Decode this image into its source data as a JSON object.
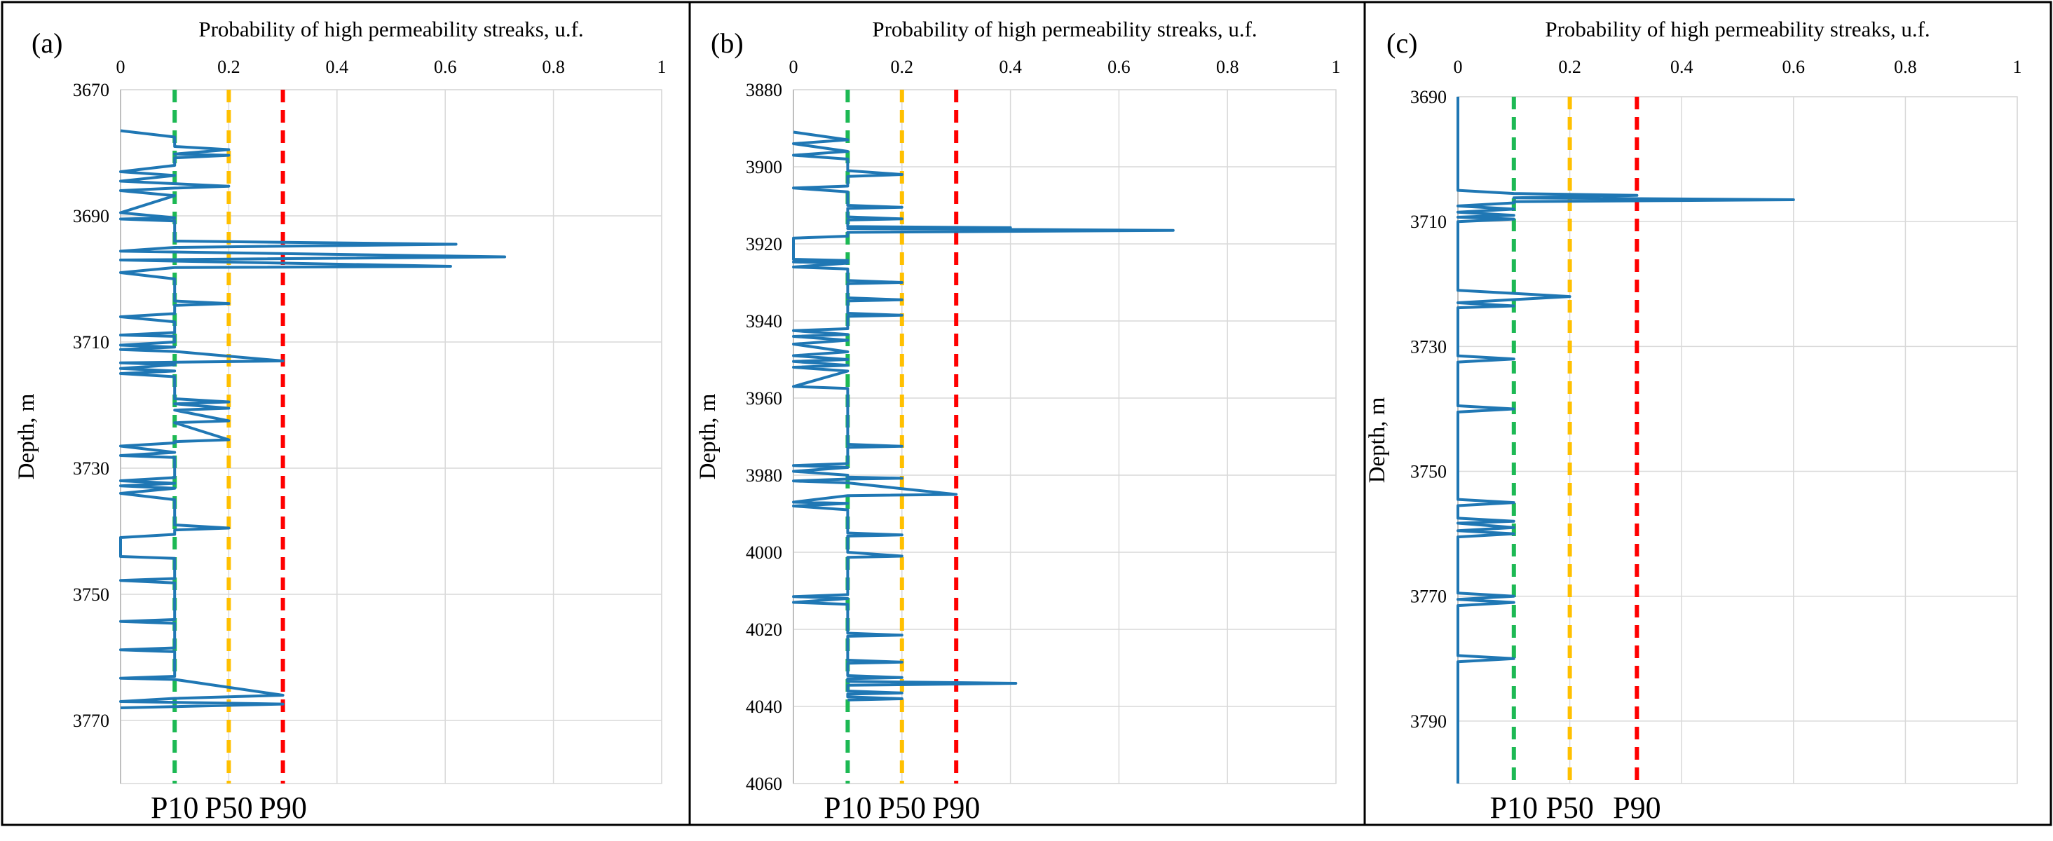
{
  "colors": {
    "series": "#1f77b4",
    "p10": "#1db954",
    "p50": "#ffc000",
    "p90": "#ff0000",
    "grid": "#d9d9d9",
    "frame": "#000000"
  },
  "chart_data": [
    {
      "type": "line",
      "panel": "(a)",
      "title": "Probability of high permeability streaks, u.f.",
      "xlabel": "Probability of high permeability streaks, u.f.",
      "ylabel": "Depth, m",
      "x_ticks": [
        "0",
        "0.2",
        "0.4",
        "0.6",
        "0.8",
        "1"
      ],
      "y_ticks": [
        "3670",
        "3690",
        "3710",
        "3730",
        "3750",
        "3770"
      ],
      "xlim": [
        0,
        1
      ],
      "ylim": [
        3670,
        3780
      ],
      "percentiles": [
        {
          "name": "P10",
          "value": 0.1
        },
        {
          "name": "P50",
          "value": 0.2
        },
        {
          "name": "P90",
          "value": 0.3
        }
      ],
      "series": [
        {
          "name": "probability",
          "points": [
            [
              0,
              3676.5
            ],
            [
              0.1,
              3677.5
            ],
            [
              0.1,
              3679
            ],
            [
              0.2,
              3679.5
            ],
            [
              0.1,
              3680.2
            ],
            [
              0.2,
              3680.4
            ],
            [
              0.1,
              3680.8
            ],
            [
              0.1,
              3682
            ],
            [
              0,
              3683
            ],
            [
              0.1,
              3683.6
            ],
            [
              0,
              3684.5
            ],
            [
              0.2,
              3685.3
            ],
            [
              0.1,
              3685.6
            ],
            [
              0,
              3686
            ],
            [
              0.1,
              3686.8
            ],
            [
              0,
              3689.5
            ],
            [
              0.1,
              3690.3
            ],
            [
              0,
              3690.5
            ],
            [
              0.1,
              3690.8
            ],
            [
              0.1,
              3694
            ],
            [
              0.62,
              3694.5
            ],
            [
              0.1,
              3695
            ],
            [
              0,
              3695.6
            ],
            [
              0.71,
              3696.5
            ],
            [
              0,
              3697
            ],
            [
              0.61,
              3698
            ],
            [
              0.1,
              3698.2
            ],
            [
              0,
              3699
            ],
            [
              0.1,
              3700
            ],
            [
              0.1,
              3703.5
            ],
            [
              0.2,
              3703.9
            ],
            [
              0.1,
              3704.2
            ],
            [
              0.1,
              3705.5
            ],
            [
              0,
              3706
            ],
            [
              0.1,
              3706.8
            ],
            [
              0.1,
              3708.5
            ],
            [
              0,
              3708.9
            ],
            [
              0.1,
              3709.1
            ],
            [
              0.1,
              3710
            ],
            [
              0,
              3710.5
            ],
            [
              0.1,
              3710.8
            ],
            [
              0,
              3711.2
            ],
            [
              0.1,
              3711.5
            ],
            [
              0.3,
              3713
            ],
            [
              0,
              3713.3
            ],
            [
              0.1,
              3713.6
            ],
            [
              0,
              3714.2
            ],
            [
              0.1,
              3714.6
            ],
            [
              0,
              3715
            ],
            [
              0.1,
              3715.5
            ],
            [
              0.1,
              3719
            ],
            [
              0.2,
              3719.5
            ],
            [
              0.1,
              3719.8
            ],
            [
              0.2,
              3720.5
            ],
            [
              0.1,
              3720.8
            ],
            [
              0.2,
              3722.5
            ],
            [
              0.1,
              3722.8
            ],
            [
              0.2,
              3725.5
            ],
            [
              0.1,
              3725.8
            ],
            [
              0.1,
              3726
            ],
            [
              0,
              3726.5
            ],
            [
              0.1,
              3727.5
            ],
            [
              0,
              3728
            ],
            [
              0.1,
              3728.3
            ],
            [
              0.1,
              3731.5
            ],
            [
              0,
              3732
            ],
            [
              0.1,
              3732.4
            ],
            [
              0,
              3732.8
            ],
            [
              0.1,
              3733.2
            ],
            [
              0,
              3734
            ],
            [
              0.1,
              3735
            ],
            [
              0.1,
              3739
            ],
            [
              0.2,
              3739.5
            ],
            [
              0.1,
              3739.8
            ],
            [
              0.1,
              3740.5
            ],
            [
              0,
              3741
            ],
            [
              0,
              3744
            ],
            [
              0.1,
              3744.3
            ],
            [
              0.1,
              3747.5
            ],
            [
              0,
              3747.8
            ],
            [
              0.1,
              3748.2
            ],
            [
              0.1,
              3754
            ],
            [
              0,
              3754.3
            ],
            [
              0.1,
              3754.6
            ],
            [
              0.1,
              3758.5
            ],
            [
              0,
              3758.8
            ],
            [
              0.1,
              3759.1
            ],
            [
              0.1,
              3763
            ],
            [
              0,
              3763.3
            ],
            [
              0.1,
              3763.5
            ],
            [
              0.3,
              3766
            ],
            [
              0.1,
              3766.5
            ],
            [
              0,
              3767
            ],
            [
              0.3,
              3767.4
            ],
            [
              0.1,
              3767.8
            ],
            [
              0,
              3768
            ]
          ]
        }
      ]
    },
    {
      "type": "line",
      "panel": "(b)",
      "title": "Probability of high permeability streaks, u.f.",
      "xlabel": "Probability of high permeability streaks, u.f.",
      "ylabel": "Depth, m",
      "x_ticks": [
        "0",
        "0.2",
        "0.4",
        "0.6",
        "0.8",
        "1"
      ],
      "y_ticks": [
        "3880",
        "3900",
        "3920",
        "3940",
        "3960",
        "3980",
        "4000",
        "4020",
        "4040",
        "4060"
      ],
      "xlim": [
        0,
        1
      ],
      "ylim": [
        3880,
        4060
      ],
      "percentiles": [
        {
          "name": "P10",
          "value": 0.1
        },
        {
          "name": "P50",
          "value": 0.2
        },
        {
          "name": "P90",
          "value": 0.3
        }
      ],
      "series": [
        {
          "name": "probability",
          "points": [
            [
              0,
              3891
            ],
            [
              0.1,
              3893
            ],
            [
              0,
              3894
            ],
            [
              0.1,
              3896
            ],
            [
              0,
              3897
            ],
            [
              0.1,
              3898
            ],
            [
              0.1,
              3901
            ],
            [
              0.2,
              3902
            ],
            [
              0.1,
              3902.5
            ],
            [
              0.1,
              3905
            ],
            [
              0,
              3905.5
            ],
            [
              0.1,
              3906.5
            ],
            [
              0.1,
              3910
            ],
            [
              0.2,
              3910.5
            ],
            [
              0.1,
              3910.8
            ],
            [
              0.1,
              3913
            ],
            [
              0.2,
              3913.5
            ],
            [
              0.1,
              3913.8
            ],
            [
              0.1,
              3915.5
            ],
            [
              0.4,
              3915.8
            ],
            [
              0.1,
              3916
            ],
            [
              0.7,
              3916.5
            ],
            [
              0.1,
              3917
            ],
            [
              0.1,
              3918
            ],
            [
              0,
              3918.5
            ],
            [
              0,
              3924
            ],
            [
              0.1,
              3924.3
            ],
            [
              0,
              3924.7
            ],
            [
              0.1,
              3925
            ],
            [
              0,
              3926
            ],
            [
              0.1,
              3926.5
            ],
            [
              0.1,
              3929.5
            ],
            [
              0.2,
              3930
            ],
            [
              0.1,
              3930.3
            ],
            [
              0.1,
              3934
            ],
            [
              0.2,
              3934.5
            ],
            [
              0.1,
              3934.8
            ],
            [
              0.1,
              3938
            ],
            [
              0.2,
              3938.5
            ],
            [
              0.1,
              3938.8
            ],
            [
              0.1,
              3942
            ],
            [
              0,
              3942.5
            ],
            [
              0.1,
              3943.5
            ],
            [
              0,
              3944
            ],
            [
              0.1,
              3945
            ],
            [
              0,
              3946
            ],
            [
              0.1,
              3948
            ],
            [
              0,
              3949
            ],
            [
              0.1,
              3950
            ],
            [
              0,
              3950.5
            ],
            [
              0.1,
              3951.5
            ],
            [
              0,
              3952
            ],
            [
              0.1,
              3953
            ],
            [
              0,
              3957
            ],
            [
              0.1,
              3957.5
            ],
            [
              0.1,
              3972
            ],
            [
              0.2,
              3972.5
            ],
            [
              0.1,
              3972.8
            ],
            [
              0.1,
              3977
            ],
            [
              0,
              3977.5
            ],
            [
              0.1,
              3978
            ],
            [
              0,
              3979
            ],
            [
              0.1,
              3980
            ],
            [
              0.1,
              3980.5
            ],
            [
              0.2,
              3980.8
            ],
            [
              0.1,
              3981
            ],
            [
              0,
              3981.5
            ],
            [
              0.1,
              3982
            ],
            [
              0.3,
              3985
            ],
            [
              0.1,
              3985.3
            ],
            [
              0,
              3987
            ],
            [
              0.1,
              3987.3
            ],
            [
              0,
              3988
            ],
            [
              0.1,
              3989
            ],
            [
              0.1,
              3995
            ],
            [
              0.2,
              3995.5
            ],
            [
              0.1,
              3995.8
            ],
            [
              0.1,
              4000
            ],
            [
              0.2,
              4001
            ],
            [
              0.1,
              4001.3
            ],
            [
              0.1,
              4011
            ],
            [
              0,
              4011.5
            ],
            [
              0.1,
              4012
            ],
            [
              0,
              4013
            ],
            [
              0.1,
              4013.5
            ],
            [
              0.1,
              4021
            ],
            [
              0.2,
              4021.5
            ],
            [
              0.1,
              4021.8
            ],
            [
              0.1,
              4028
            ],
            [
              0.2,
              4028.5
            ],
            [
              0.1,
              4028.8
            ],
            [
              0.1,
              4032
            ],
            [
              0.2,
              4032.5
            ],
            [
              0.1,
              4032.8
            ],
            [
              0.1,
              4033.5
            ],
            [
              0.41,
              4034
            ],
            [
              0.1,
              4034.5
            ],
            [
              0.1,
              4036
            ],
            [
              0.2,
              4036.5
            ],
            [
              0.1,
              4036.8
            ],
            [
              0.1,
              4037.5
            ],
            [
              0.2,
              4038
            ],
            [
              0.1,
              4038.3
            ]
          ]
        }
      ]
    },
    {
      "type": "line",
      "panel": "(c)",
      "title": "Probability of high permeability streaks, u.f.",
      "xlabel": "Probability of high permeability streaks, u.f.",
      "ylabel": "Depth, m",
      "x_ticks": [
        "0",
        "0.2",
        "0.4",
        "0.6",
        "0.8",
        "1"
      ],
      "y_ticks": [
        "3690",
        "3710",
        "3730",
        "3750",
        "3770",
        "3790"
      ],
      "xlim": [
        0,
        1
      ],
      "ylim": [
        3690,
        3800
      ],
      "percentiles": [
        {
          "name": "P10",
          "value": 0.1
        },
        {
          "name": "P50",
          "value": 0.2
        },
        {
          "name": "P90",
          "value": 0.32
        }
      ],
      "series": [
        {
          "name": "probability",
          "points": [
            [
              0,
              3690
            ],
            [
              0,
              3705
            ],
            [
              0.1,
              3705.5
            ],
            [
              0.32,
              3705.8
            ],
            [
              0.1,
              3706.2
            ],
            [
              0.6,
              3706.5
            ],
            [
              0.1,
              3706.8
            ],
            [
              0.1,
              3707
            ],
            [
              0,
              3707.5
            ],
            [
              0.1,
              3708
            ],
            [
              0,
              3708.5
            ],
            [
              0.1,
              3709
            ],
            [
              0,
              3709.3
            ],
            [
              0.1,
              3709.6
            ],
            [
              0,
              3710
            ],
            [
              0,
              3721
            ],
            [
              0.1,
              3721.5
            ],
            [
              0.2,
              3722
            ],
            [
              0.1,
              3722.5
            ],
            [
              0,
              3723
            ],
            [
              0.1,
              3723.5
            ],
            [
              0,
              3723.8
            ],
            [
              0,
              3731.5
            ],
            [
              0.1,
              3732
            ],
            [
              0,
              3732.5
            ],
            [
              0,
              3739.5
            ],
            [
              0.1,
              3740
            ],
            [
              0,
              3740.5
            ],
            [
              0,
              3754.5
            ],
            [
              0.1,
              3755
            ],
            [
              0,
              3755.5
            ],
            [
              0,
              3757.5
            ],
            [
              0.1,
              3758
            ],
            [
              0,
              3758.3
            ],
            [
              0.1,
              3759
            ],
            [
              0,
              3759.5
            ],
            [
              0.1,
              3760
            ],
            [
              0,
              3760.5
            ],
            [
              0,
              3769.5
            ],
            [
              0.1,
              3770
            ],
            [
              0,
              3770.5
            ],
            [
              0.1,
              3771
            ],
            [
              0,
              3771.5
            ],
            [
              0,
              3779.5
            ],
            [
              0.1,
              3780
            ],
            [
              0,
              3780.5
            ],
            [
              0,
              3800
            ]
          ]
        }
      ]
    }
  ]
}
